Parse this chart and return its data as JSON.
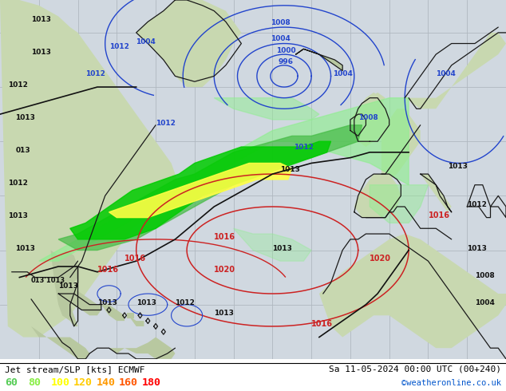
{
  "title_left": "Jet stream/SLP [kts] ECMWF",
  "title_right": "Sa 11-05-2024 00:00 UTC (00+240)",
  "credit": "©weatheronline.co.uk",
  "legend_values": [
    "60",
    "80",
    "100",
    "120",
    "140",
    "160",
    "180"
  ],
  "legend_colors": [
    "#55cc55",
    "#88ee44",
    "#ffff00",
    "#ffcc00",
    "#ff9900",
    "#ff5500",
    "#ff0000"
  ],
  "bg_color": "#d8d8d8",
  "ocean_color": "#d0d8e0",
  "land_color": "#c8d8b0",
  "land_color2": "#b8c8a0",
  "grid_color": "#b0b8c0",
  "blue_color": "#2244cc",
  "red_color": "#cc2222",
  "black_color": "#111111",
  "jet_light_green": "#90ee90",
  "jet_mid_green": "#44bb44",
  "jet_bright_green": "#00cc00",
  "jet_yellow": "#ffff44",
  "figsize": [
    6.34,
    4.9
  ],
  "dpi": 100,
  "title_fontsize": 8.0,
  "legend_fontsize": 9.5,
  "label_fontsize": 6.5
}
